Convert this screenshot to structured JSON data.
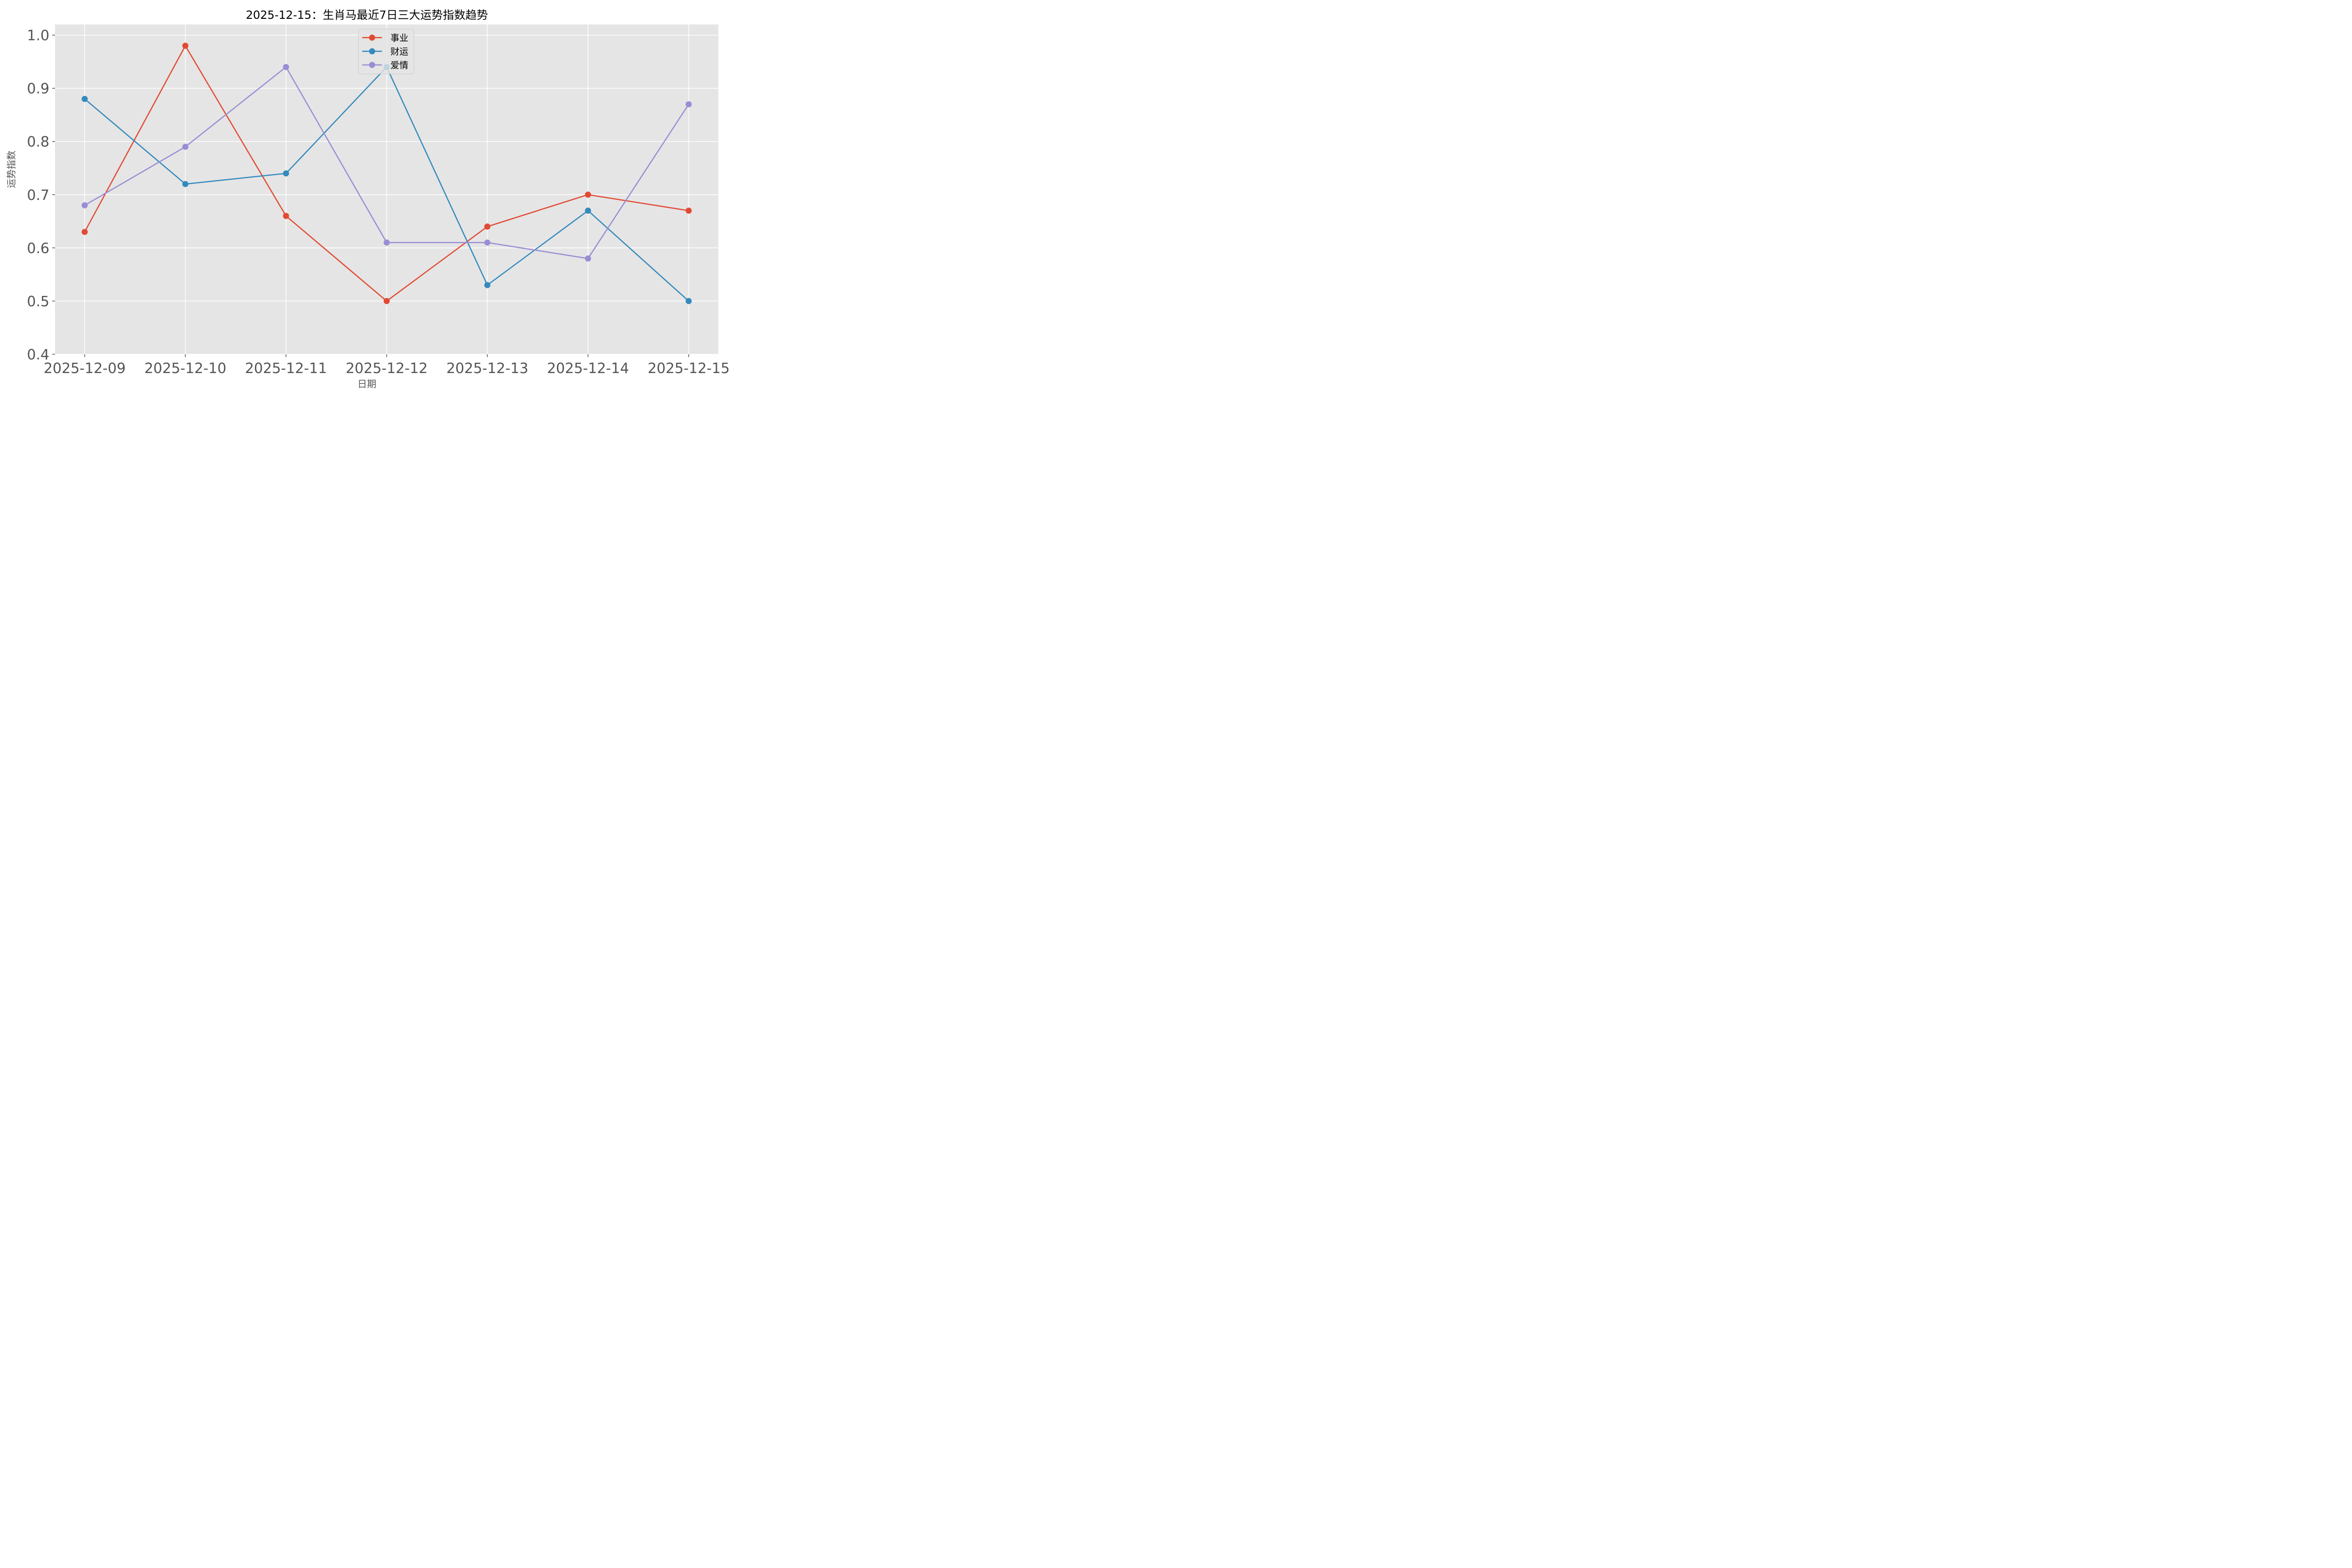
{
  "chart_data": {
    "type": "line",
    "title": "2025-12-15：生肖马最近7日三大运势指数趋势",
    "xlabel": "日期",
    "ylabel": "运势指数",
    "categories": [
      "2025-12-09",
      "2025-12-10",
      "2025-12-11",
      "2025-12-12",
      "2025-12-13",
      "2025-12-14",
      "2025-12-15"
    ],
    "series": [
      {
        "name": "事业",
        "color": "#E24A33",
        "values": [
          0.63,
          0.98,
          0.66,
          0.5,
          0.64,
          0.7,
          0.67
        ]
      },
      {
        "name": "财运",
        "color": "#348ABD",
        "values": [
          0.88,
          0.72,
          0.74,
          0.94,
          0.53,
          0.67,
          0.5
        ]
      },
      {
        "name": "爱情",
        "color": "#988ED5",
        "values": [
          0.68,
          0.79,
          0.94,
          0.61,
          0.61,
          0.58,
          0.87
        ]
      }
    ],
    "ylim": [
      0.4,
      1.02
    ],
    "yticks": [
      "0.4",
      "0.5",
      "0.6",
      "0.7",
      "0.8",
      "0.9",
      "1.0"
    ],
    "grid": true,
    "legend_position": "upper center",
    "style": {
      "plot_bg": "#E5E5E5",
      "grid_color": "#FFFFFF",
      "tick_color": "#555555"
    }
  }
}
